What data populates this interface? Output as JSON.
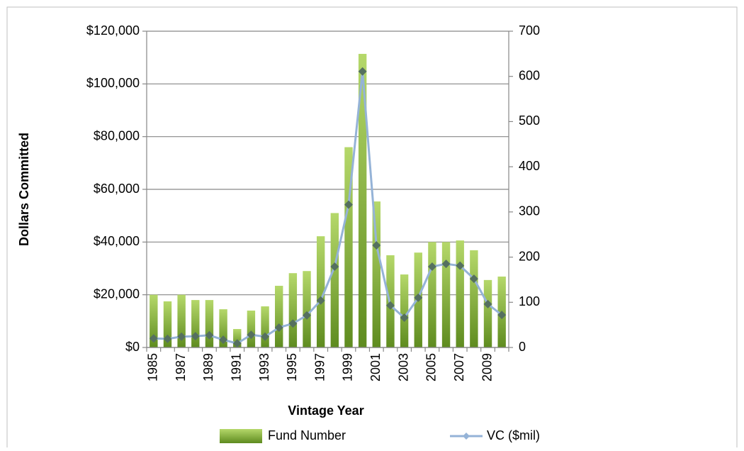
{
  "chart_data": {
    "type": "bar_line",
    "y_axis_label": "Dollars Committed",
    "x_axis_label": "Vintage Year",
    "categories": [
      "1985",
      null,
      "1987",
      null,
      "1989",
      null,
      "1991",
      null,
      "1993",
      null,
      "1995",
      null,
      "1997",
      null,
      "1999",
      null,
      "2001",
      null,
      "2003",
      null,
      "2005",
      null,
      "2007",
      null,
      "2009",
      null
    ],
    "series": [
      {
        "name": "Fund Number",
        "type": "bar",
        "color": "#8db33a",
        "values": [
          20000,
          17500,
          20000,
          18000,
          18000,
          14500,
          7000,
          14000,
          15600,
          23400,
          28200,
          29000,
          42200,
          51000,
          76000,
          111400,
          55400,
          35000,
          27700,
          36000,
          40000,
          40000,
          40600,
          36900,
          25600,
          26900
        ]
      },
      {
        "name": "VC ($mil)",
        "type": "line",
        "axis": "y2",
        "color": "#95b3d7",
        "marker_color": "#55705f",
        "values": [
          20,
          19,
          24,
          25,
          27,
          17,
          9,
          28,
          24,
          44,
          53,
          71,
          104,
          179,
          316,
          611,
          226,
          93,
          66,
          110,
          179,
          185,
          181,
          152,
          96,
          72
        ]
      }
    ],
    "ylim": [
      0,
      120000
    ],
    "yticks": [
      {
        "value": 0,
        "label": "$0"
      },
      {
        "value": 20000,
        "label": "$20,000"
      },
      {
        "value": 40000,
        "label": "$40,000"
      },
      {
        "value": 60000,
        "label": "$60,000"
      },
      {
        "value": 80000,
        "label": "$80,000"
      },
      {
        "value": 100000,
        "label": "$100,000"
      },
      {
        "value": 120000,
        "label": "$120,000"
      }
    ],
    "y2lim": [
      0,
      700
    ],
    "y2ticks": [
      0,
      100,
      200,
      300,
      400,
      500,
      600,
      700
    ],
    "grid": true,
    "legend": "bottom"
  }
}
